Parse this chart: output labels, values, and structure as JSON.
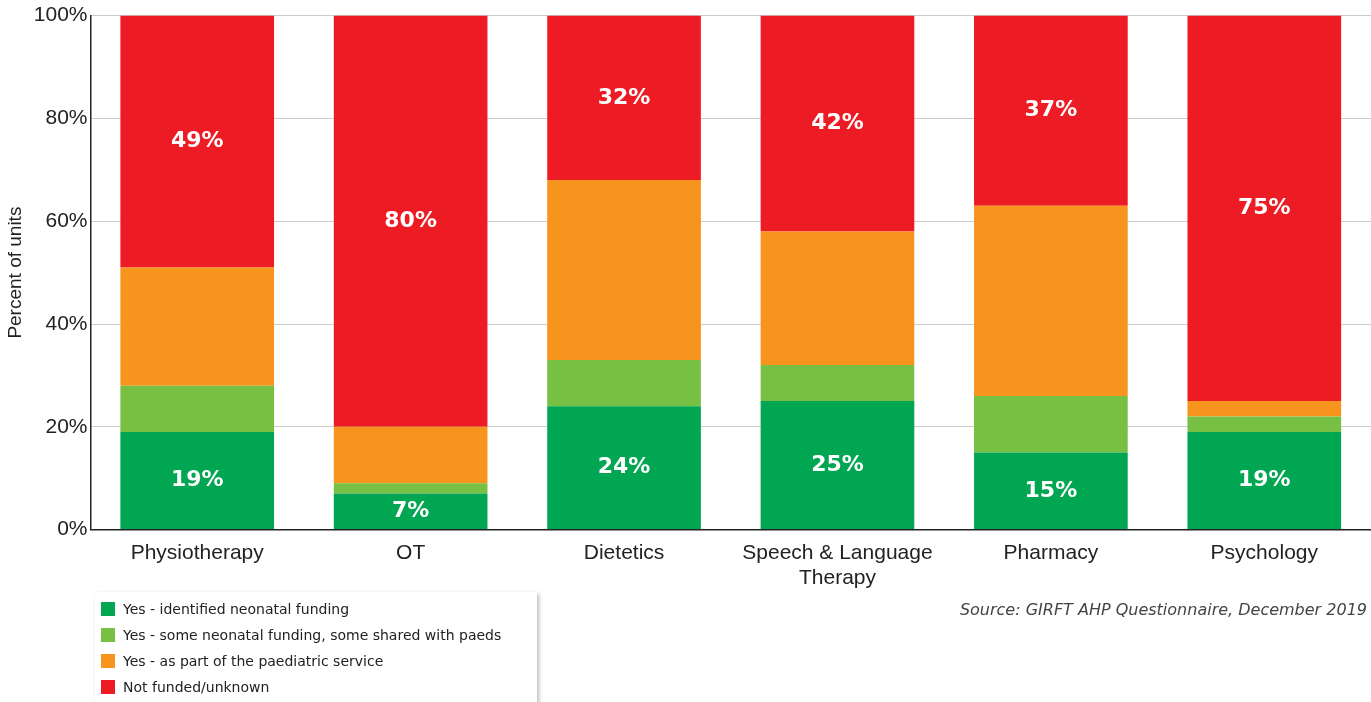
{
  "chart_data": {
    "type": "bar",
    "stacked": true,
    "ylabel": "Percent of units",
    "categories": [
      "Physiotherapy",
      "OT",
      "Dietetics",
      "Speech & Language Therapy",
      "Pharmacy",
      "Psychology"
    ],
    "series": [
      {
        "name": "Yes - identified neonatal funding",
        "color": "#00a651",
        "values": [
          19,
          7,
          24,
          25,
          15,
          19
        ],
        "value_labels": [
          "19%",
          "7%",
          "24%",
          "25%",
          "15%",
          "19%"
        ]
      },
      {
        "name": "Yes - some neonatal funding, some shared with paeds",
        "color": "#77c043",
        "values": [
          9,
          2,
          9,
          7,
          11,
          3
        ]
      },
      {
        "name": "Yes - as part of the paediatric service",
        "color": "#f7941d",
        "values": [
          23,
          11,
          35,
          26,
          37,
          3
        ]
      },
      {
        "name": "Not funded/unknown",
        "color": "#ed1c24",
        "values": [
          49,
          80,
          32,
          42,
          37,
          75
        ],
        "value_labels": [
          "49%",
          "80%",
          "32%",
          "42%",
          "37%",
          "75%"
        ]
      }
    ],
    "ylim": [
      0,
      100
    ],
    "yticks": [
      {
        "value": 0,
        "label": "0%"
      },
      {
        "value": 20,
        "label": "20%"
      },
      {
        "value": 40,
        "label": "40%"
      },
      {
        "value": 60,
        "label": "60%"
      },
      {
        "value": 80,
        "label": "80%"
      },
      {
        "value": 100,
        "label": "100%"
      }
    ],
    "grid": "y",
    "legend": "bottom left",
    "annotations": [
      "Source: GIRFT AHP Questionnaire, December 2019"
    ]
  }
}
